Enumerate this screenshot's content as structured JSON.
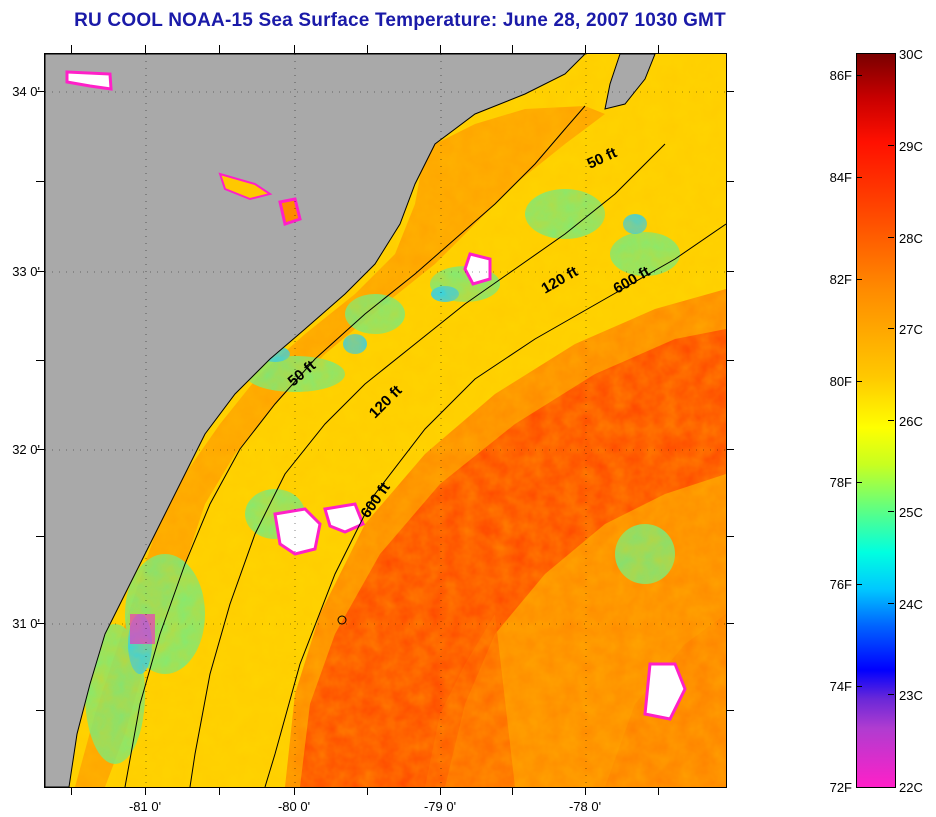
{
  "title": "RU COOL  NOAA-15  Sea Surface Temperature:  June 28, 2007 1030 GMT",
  "latitude_labels": [
    "34 0'",
    "33 0'",
    "32 0'",
    "31 0'"
  ],
  "longitude_labels": [
    "-81 0'",
    "-80 0'",
    "-79 0'",
    "-78 0'"
  ],
  "contour_labels": [
    "50 ft",
    "120 ft",
    "600 ft",
    "50 ft",
    "120 ft",
    "600 ft"
  ],
  "colorbar": {
    "celsius": [
      "30C",
      "29C",
      "28C",
      "27C",
      "26C",
      "25C",
      "24C",
      "23C",
      "22C"
    ],
    "fahrenheit": [
      "86F",
      "84F",
      "82F",
      "80F",
      "78F",
      "76F",
      "74F",
      "72F"
    ]
  },
  "colors": {
    "land": "#a9a9a9",
    "title": "#1a1aa8",
    "warm_core": "#ff2a00",
    "mid": "#ffd200",
    "cool": "#00e0ff",
    "cloud": "#ffffff",
    "cloud_edge": "#ff20c8"
  }
}
